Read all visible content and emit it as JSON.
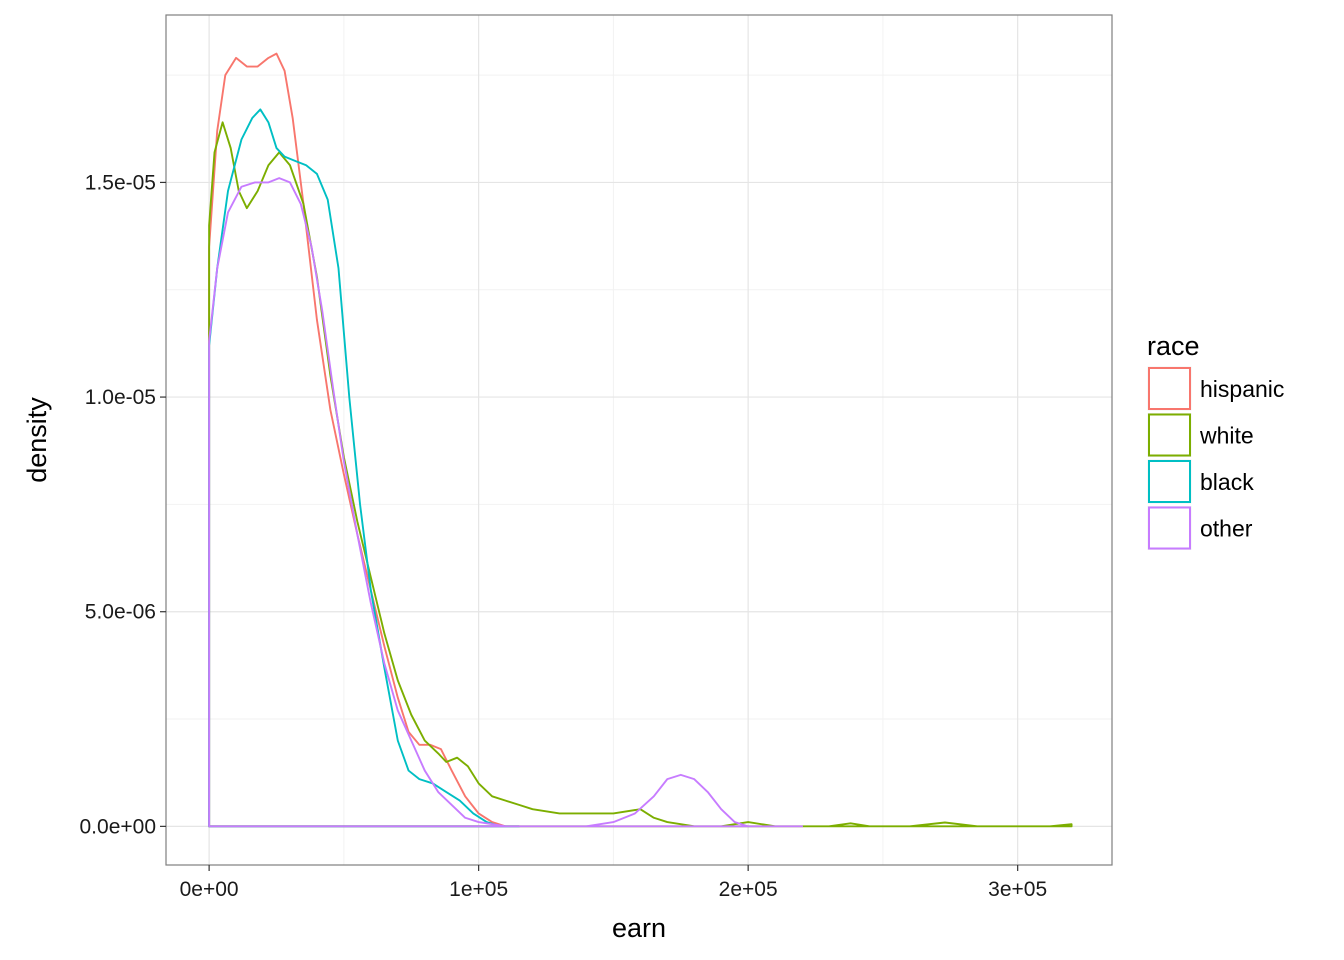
{
  "chart_data": {
    "type": "line",
    "xlabel": "earn",
    "ylabel": "density",
    "xlim": [
      -16000,
      335000
    ],
    "ylim": [
      -9e-07,
      1.89e-05
    ],
    "x_ticks": [
      0,
      100000,
      200000,
      300000
    ],
    "x_tick_labels": [
      "0e+00",
      "1e+05",
      "2e+05",
      "3e+05"
    ],
    "y_ticks": [
      0,
      5e-06,
      1e-05,
      1.5e-05
    ],
    "y_tick_labels": [
      "0.0e+00",
      "5.0e-06",
      "1.0e-05",
      "1.5e-05"
    ],
    "grid": true,
    "legend": {
      "title": "race",
      "position": "right"
    },
    "series": [
      {
        "name": "hispanic",
        "color": "#F8766D",
        "x_max": 115000,
        "points": [
          [
            0,
            1.35e-05
          ],
          [
            3000,
            1.62e-05
          ],
          [
            6000,
            1.75e-05
          ],
          [
            10000,
            1.79e-05
          ],
          [
            14000,
            1.77e-05
          ],
          [
            18000,
            1.77e-05
          ],
          [
            22000,
            1.79e-05
          ],
          [
            25000,
            1.8e-05
          ],
          [
            28000,
            1.76e-05
          ],
          [
            31000,
            1.65e-05
          ],
          [
            35000,
            1.45e-05
          ],
          [
            40000,
            1.18e-05
          ],
          [
            45000,
            9.7e-06
          ],
          [
            50000,
            8.2e-06
          ],
          [
            55000,
            6.8e-06
          ],
          [
            60000,
            5.5e-06
          ],
          [
            65000,
            4.2e-06
          ],
          [
            70000,
            3e-06
          ],
          [
            74000,
            2.2e-06
          ],
          [
            78000,
            1.9e-06
          ],
          [
            82000,
            1.9e-06
          ],
          [
            86000,
            1.8e-06
          ],
          [
            90000,
            1.3e-06
          ],
          [
            95000,
            7e-07
          ],
          [
            100000,
            3e-07
          ],
          [
            105000,
            1e-07
          ],
          [
            110000,
            0.0
          ],
          [
            115000,
            0.0
          ]
        ]
      },
      {
        "name": "white",
        "color": "#7CAE00",
        "x_max": 320000,
        "points": [
          [
            0,
            1.4e-05
          ],
          [
            2000,
            1.57e-05
          ],
          [
            5000,
            1.64e-05
          ],
          [
            8000,
            1.58e-05
          ],
          [
            11000,
            1.48e-05
          ],
          [
            14000,
            1.44e-05
          ],
          [
            18000,
            1.48e-05
          ],
          [
            22000,
            1.54e-05
          ],
          [
            26000,
            1.57e-05
          ],
          [
            30000,
            1.54e-05
          ],
          [
            35000,
            1.45e-05
          ],
          [
            40000,
            1.28e-05
          ],
          [
            45000,
            1.05e-05
          ],
          [
            50000,
            8.6e-06
          ],
          [
            55000,
            7.1e-06
          ],
          [
            60000,
            5.8e-06
          ],
          [
            65000,
            4.5e-06
          ],
          [
            70000,
            3.4e-06
          ],
          [
            75000,
            2.6e-06
          ],
          [
            80000,
            2e-06
          ],
          [
            85000,
            1.7e-06
          ],
          [
            88000,
            1.5e-06
          ],
          [
            92000,
            1.6e-06
          ],
          [
            96000,
            1.4e-06
          ],
          [
            100000,
            1e-06
          ],
          [
            105000,
            7e-07
          ],
          [
            110000,
            6e-07
          ],
          [
            115000,
            5e-07
          ],
          [
            120000,
            4e-07
          ],
          [
            130000,
            3e-07
          ],
          [
            140000,
            3e-07
          ],
          [
            150000,
            3e-07
          ],
          [
            160000,
            4e-07
          ],
          [
            165000,
            2e-07
          ],
          [
            170000,
            1e-07
          ],
          [
            180000,
            0.0
          ],
          [
            190000,
            0.0
          ],
          [
            200000,
            1e-07
          ],
          [
            210000,
            0.0
          ],
          [
            230000,
            0.0
          ],
          [
            238000,
            7e-08
          ],
          [
            245000,
            0.0
          ],
          [
            260000,
            0.0
          ],
          [
            273000,
            9e-08
          ],
          [
            285000,
            0.0
          ],
          [
            300000,
            0.0
          ],
          [
            312000,
            0.0
          ],
          [
            320000,
            5e-08
          ]
        ]
      },
      {
        "name": "black",
        "color": "#00BFC4",
        "x_max": 115000,
        "points": [
          [
            0,
            1.12e-05
          ],
          [
            3000,
            1.3e-05
          ],
          [
            7000,
            1.48e-05
          ],
          [
            12000,
            1.6e-05
          ],
          [
            16000,
            1.65e-05
          ],
          [
            19000,
            1.67e-05
          ],
          [
            22000,
            1.64e-05
          ],
          [
            25000,
            1.58e-05
          ],
          [
            28000,
            1.56e-05
          ],
          [
            32000,
            1.55e-05
          ],
          [
            36000,
            1.54e-05
          ],
          [
            40000,
            1.52e-05
          ],
          [
            44000,
            1.46e-05
          ],
          [
            48000,
            1.3e-05
          ],
          [
            52000,
            1e-05
          ],
          [
            56000,
            7.5e-06
          ],
          [
            60000,
            5.5e-06
          ],
          [
            65000,
            3.7e-06
          ],
          [
            70000,
            2e-06
          ],
          [
            74000,
            1.3e-06
          ],
          [
            78000,
            1.1e-06
          ],
          [
            83000,
            1e-06
          ],
          [
            88000,
            8e-07
          ],
          [
            93000,
            6e-07
          ],
          [
            98000,
            3e-07
          ],
          [
            103000,
            1e-07
          ],
          [
            108000,
            0.0
          ],
          [
            115000,
            0.0
          ]
        ]
      },
      {
        "name": "other",
        "color": "#C77CFF",
        "x_max": 220000,
        "points": [
          [
            0,
            1.13e-05
          ],
          [
            3000,
            1.3e-05
          ],
          [
            7000,
            1.43e-05
          ],
          [
            12000,
            1.49e-05
          ],
          [
            17000,
            1.5e-05
          ],
          [
            22000,
            1.5e-05
          ],
          [
            26000,
            1.51e-05
          ],
          [
            30000,
            1.5e-05
          ],
          [
            34000,
            1.45e-05
          ],
          [
            38000,
            1.35e-05
          ],
          [
            42000,
            1.2e-05
          ],
          [
            46000,
            1.02e-05
          ],
          [
            50000,
            8.5e-06
          ],
          [
            55000,
            6.8e-06
          ],
          [
            60000,
            5.2e-06
          ],
          [
            65000,
            3.8e-06
          ],
          [
            70000,
            2.7e-06
          ],
          [
            75000,
            2e-06
          ],
          [
            80000,
            1.3e-06
          ],
          [
            85000,
            8e-07
          ],
          [
            90000,
            5e-07
          ],
          [
            95000,
            2e-07
          ],
          [
            100000,
            1e-07
          ],
          [
            110000,
            0.0
          ],
          [
            140000,
            0.0
          ],
          [
            150000,
            1e-07
          ],
          [
            158000,
            3e-07
          ],
          [
            165000,
            7e-07
          ],
          [
            170000,
            1.1e-06
          ],
          [
            175000,
            1.2e-06
          ],
          [
            180000,
            1.1e-06
          ],
          [
            185000,
            8e-07
          ],
          [
            190000,
            4e-07
          ],
          [
            195000,
            1e-07
          ],
          [
            200000,
            0.0
          ],
          [
            220000,
            0.0
          ]
        ]
      }
    ]
  }
}
